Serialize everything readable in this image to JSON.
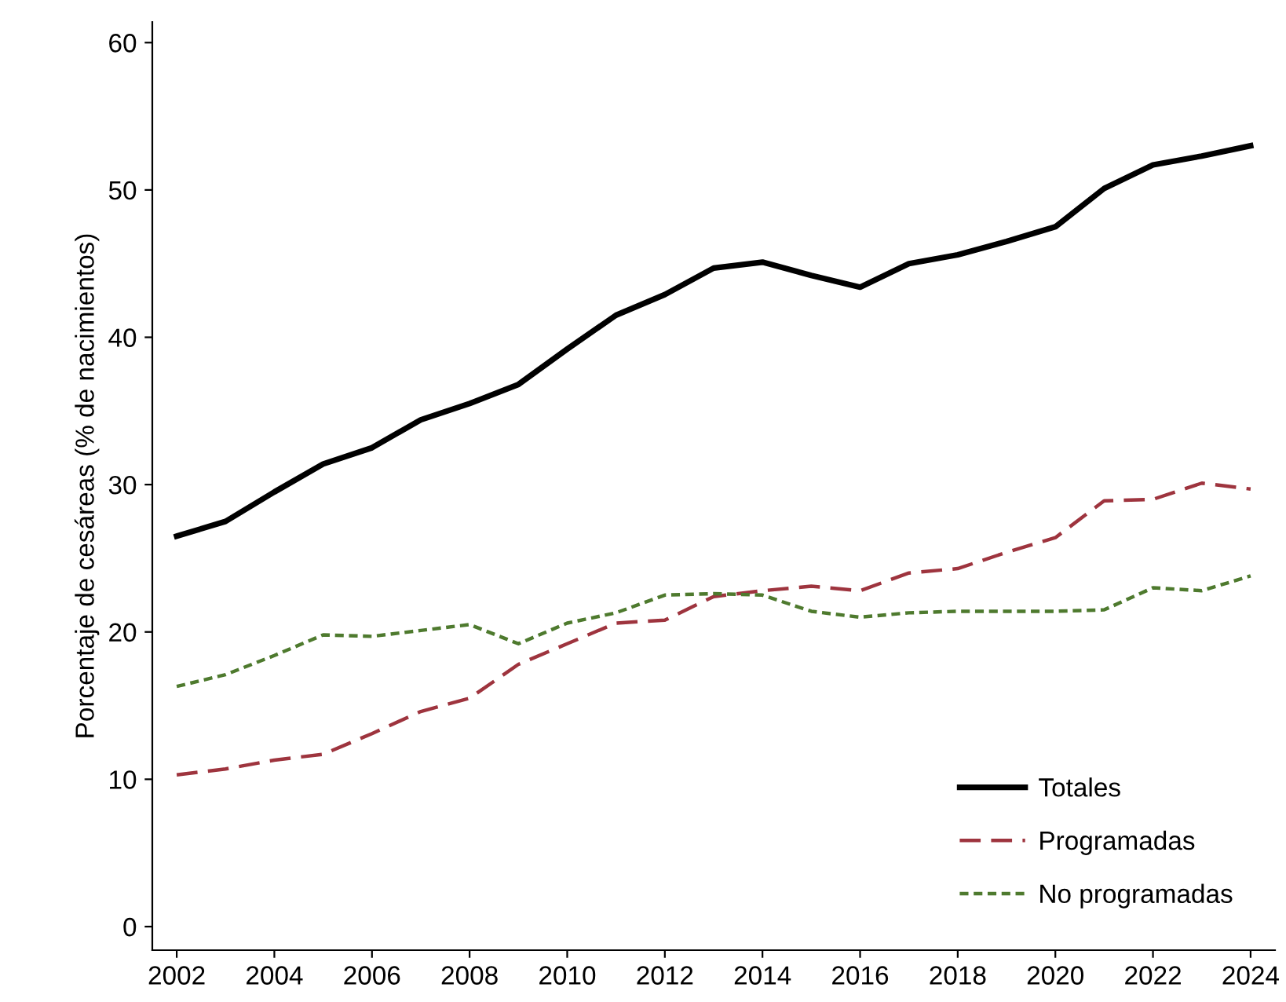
{
  "chart_data": {
    "type": "line",
    "ylabel": "Porcentaje de cesáreas (% de nacimientos)",
    "x": [
      2002,
      2003,
      2004,
      2005,
      2006,
      2007,
      2008,
      2009,
      2010,
      2011,
      2012,
      2013,
      2014,
      2015,
      2016,
      2017,
      2018,
      2019,
      2020,
      2021,
      2022,
      2023,
      2024
    ],
    "series": [
      {
        "name": "Totales",
        "color": "#000000",
        "line_style": "solid",
        "values": [
          26.5,
          27.5,
          29.5,
          31.4,
          32.5,
          34.4,
          35.5,
          36.8,
          39.2,
          41.5,
          42.9,
          44.7,
          45.1,
          44.2,
          43.4,
          45.0,
          45.6,
          46.5,
          47.5,
          50.1,
          51.7,
          52.3,
          53.0
        ]
      },
      {
        "name": "Programadas",
        "color": "#9e343e",
        "line_style": "dashed",
        "values": [
          10.3,
          10.7,
          11.3,
          11.7,
          13.1,
          14.6,
          15.5,
          17.8,
          19.2,
          20.6,
          20.8,
          22.4,
          22.8,
          23.1,
          22.8,
          24.0,
          24.3,
          25.4,
          26.4,
          28.9,
          29.0,
          30.1,
          29.7
        ]
      },
      {
        "name": "No programadas",
        "color": "#4e7a2e",
        "line_style": "dotted",
        "values": [
          16.3,
          17.1,
          18.4,
          19.8,
          19.7,
          20.1,
          20.5,
          19.2,
          20.6,
          21.3,
          22.5,
          22.6,
          22.5,
          21.4,
          21.0,
          21.3,
          21.4,
          21.4,
          21.4,
          21.5,
          23.0,
          22.8,
          23.8
        ]
      }
    ],
    "xlim": [
      2001.5,
      2024.5
    ],
    "ylim": [
      -1.6,
      61.4
    ],
    "xticks": [
      2002,
      2004,
      2006,
      2008,
      2010,
      2012,
      2014,
      2016,
      2018,
      2020,
      2022,
      2024
    ],
    "yticks": [
      0,
      10,
      20,
      30,
      40,
      50,
      60
    ],
    "grid": false,
    "legend": "bottom right"
  }
}
